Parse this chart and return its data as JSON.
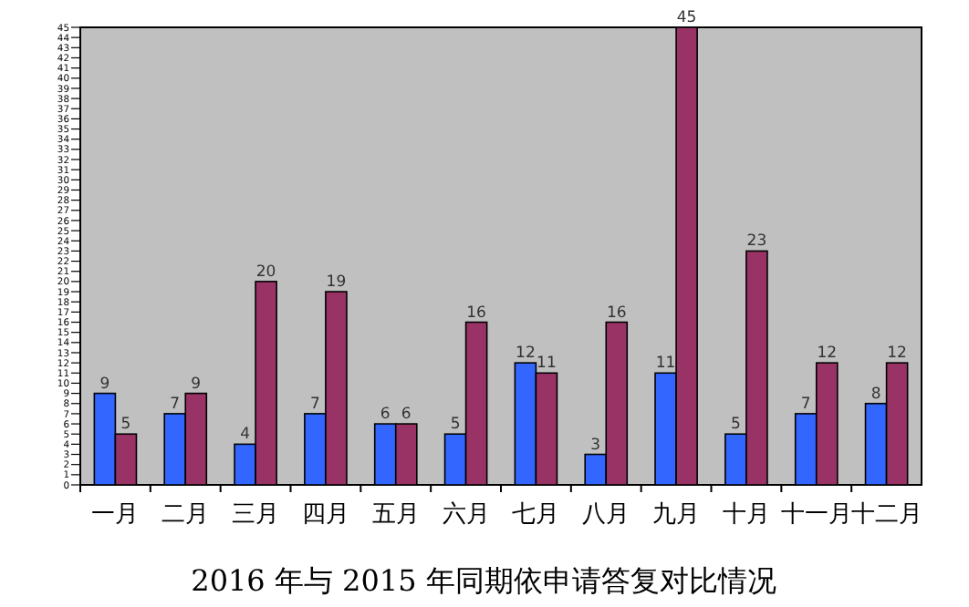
{
  "chart_data": {
    "type": "bar",
    "title": "2016 年与 2015 年同期依申请答复对比情况",
    "categories": [
      "一月",
      "二月",
      "三月",
      "四月",
      "五月",
      "六月",
      "七月",
      "八月",
      "九月",
      "十月",
      "十一月",
      "十二月"
    ],
    "series": [
      {
        "color": "#3366ff",
        "values": [
          9,
          7,
          4,
          7,
          6,
          5,
          12,
          3,
          11,
          5,
          7,
          8
        ]
      },
      {
        "color": "#993366",
        "values": [
          5,
          9,
          20,
          19,
          6,
          16,
          11,
          16,
          45,
          23,
          12,
          12
        ]
      }
    ],
    "ylim": [
      0,
      45
    ],
    "yticks": [
      0,
      1,
      2,
      3,
      4,
      5,
      6,
      7,
      8,
      9,
      10,
      11,
      12,
      13,
      14,
      15,
      16,
      17,
      18,
      19,
      20,
      21,
      22,
      23,
      24,
      25,
      26,
      27,
      28,
      29,
      30,
      31,
      32,
      33,
      34,
      35,
      36,
      37,
      38,
      39,
      40,
      41,
      42,
      43,
      44,
      45
    ],
    "data_labels": true
  }
}
